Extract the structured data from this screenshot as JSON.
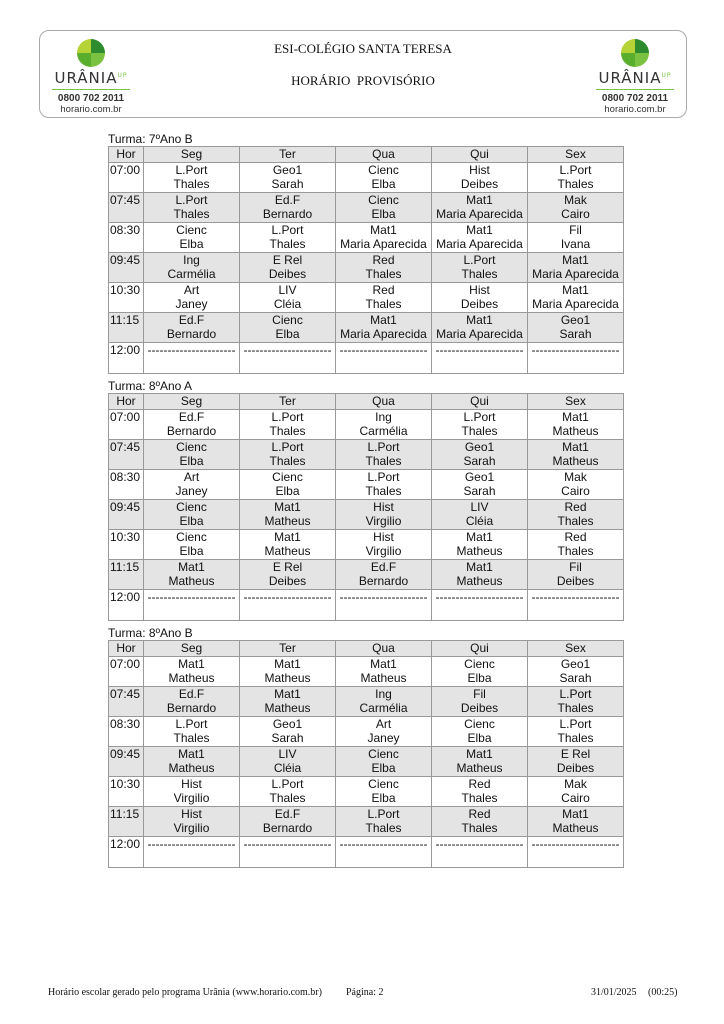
{
  "header": {
    "school": "ESI-COLÉGIO SANTA TERESA",
    "subtitle": "HORÁRIO  PROVISÓRIO",
    "logo": {
      "brand": "URÂNIA",
      "sup": "UP",
      "phone": "0800 702 2011",
      "site": "horario.com.br"
    }
  },
  "columns": [
    "Hor",
    "Seg",
    "Ter",
    "Qua",
    "Qui",
    "Sex"
  ],
  "classes": [
    {
      "title": "Turma: 7ºAno B",
      "rows": [
        {
          "time": "07:00",
          "cells": [
            [
              "L.Port",
              "Thales"
            ],
            [
              "Geo1",
              "Sarah"
            ],
            [
              "Cienc",
              "Elba"
            ],
            [
              "Hist",
              "Deibes"
            ],
            [
              "L.Port",
              "Thales"
            ]
          ]
        },
        {
          "time": "07:45",
          "cells": [
            [
              "L.Port",
              "Thales"
            ],
            [
              "Ed.F",
              "Bernardo"
            ],
            [
              "Cienc",
              "Elba"
            ],
            [
              "Mat1",
              "Maria Aparecida"
            ],
            [
              "Mak",
              "Cairo"
            ]
          ]
        },
        {
          "time": "08:30",
          "cells": [
            [
              "Cienc",
              "Elba"
            ],
            [
              "L.Port",
              "Thales"
            ],
            [
              "Mat1",
              "Maria Aparecida"
            ],
            [
              "Mat1",
              "Maria Aparecida"
            ],
            [
              "Fil",
              "Ivana"
            ]
          ]
        },
        {
          "time": "09:45",
          "cells": [
            [
              "Ing",
              "Carmélia"
            ],
            [
              "E Rel",
              "Deibes"
            ],
            [
              "Red",
              "Thales"
            ],
            [
              "L.Port",
              "Thales"
            ],
            [
              "Mat1",
              "Maria Aparecida"
            ]
          ]
        },
        {
          "time": "10:30",
          "cells": [
            [
              "Art",
              "Janey"
            ],
            [
              "LIV",
              "Cléia"
            ],
            [
              "Red",
              "Thales"
            ],
            [
              "Hist",
              "Deibes"
            ],
            [
              "Mat1",
              "Maria Aparecida"
            ]
          ]
        },
        {
          "time": "11:15",
          "cells": [
            [
              "Ed.F",
              "Bernardo"
            ],
            [
              "Cienc",
              "Elba"
            ],
            [
              "Mat1",
              "Maria Aparecida"
            ],
            [
              "Mat1",
              "Maria Aparecida"
            ],
            [
              "Geo1",
              "Sarah"
            ]
          ]
        },
        {
          "time": "12:00",
          "cells": [
            [
              "----------------------",
              ""
            ],
            [
              "----------------------",
              ""
            ],
            [
              "----------------------",
              ""
            ],
            [
              "----------------------",
              ""
            ],
            [
              "----------------------",
              ""
            ]
          ]
        }
      ]
    },
    {
      "title": "Turma: 8ºAno A",
      "rows": [
        {
          "time": "07:00",
          "cells": [
            [
              "Ed.F",
              "Bernardo"
            ],
            [
              "L.Port",
              "Thales"
            ],
            [
              "Ing",
              "Carmélia"
            ],
            [
              "L.Port",
              "Thales"
            ],
            [
              "Mat1",
              "Matheus"
            ]
          ]
        },
        {
          "time": "07:45",
          "cells": [
            [
              "Cienc",
              "Elba"
            ],
            [
              "L.Port",
              "Thales"
            ],
            [
              "L.Port",
              "Thales"
            ],
            [
              "Geo1",
              "Sarah"
            ],
            [
              "Mat1",
              "Matheus"
            ]
          ]
        },
        {
          "time": "08:30",
          "cells": [
            [
              "Art",
              "Janey"
            ],
            [
              "Cienc",
              "Elba"
            ],
            [
              "L.Port",
              "Thales"
            ],
            [
              "Geo1",
              "Sarah"
            ],
            [
              "Mak",
              "Cairo"
            ]
          ]
        },
        {
          "time": "09:45",
          "cells": [
            [
              "Cienc",
              "Elba"
            ],
            [
              "Mat1",
              "Matheus"
            ],
            [
              "Hist",
              "Virgilio"
            ],
            [
              "LIV",
              "Cléia"
            ],
            [
              "Red",
              "Thales"
            ]
          ]
        },
        {
          "time": "10:30",
          "cells": [
            [
              "Cienc",
              "Elba"
            ],
            [
              "Mat1",
              "Matheus"
            ],
            [
              "Hist",
              "Virgilio"
            ],
            [
              "Mat1",
              "Matheus"
            ],
            [
              "Red",
              "Thales"
            ]
          ]
        },
        {
          "time": "11:15",
          "cells": [
            [
              "Mat1",
              "Matheus"
            ],
            [
              "E Rel",
              "Deibes"
            ],
            [
              "Ed.F",
              "Bernardo"
            ],
            [
              "Mat1",
              "Matheus"
            ],
            [
              "Fil",
              "Deibes"
            ]
          ]
        },
        {
          "time": "12:00",
          "cells": [
            [
              "----------------------",
              ""
            ],
            [
              "----------------------",
              ""
            ],
            [
              "----------------------",
              ""
            ],
            [
              "----------------------",
              ""
            ],
            [
              "----------------------",
              ""
            ]
          ]
        }
      ]
    },
    {
      "title": "Turma: 8ºAno B",
      "rows": [
        {
          "time": "07:00",
          "cells": [
            [
              "Mat1",
              "Matheus"
            ],
            [
              "Mat1",
              "Matheus"
            ],
            [
              "Mat1",
              "Matheus"
            ],
            [
              "Cienc",
              "Elba"
            ],
            [
              "Geo1",
              "Sarah"
            ]
          ]
        },
        {
          "time": "07:45",
          "cells": [
            [
              "Ed.F",
              "Bernardo"
            ],
            [
              "Mat1",
              "Matheus"
            ],
            [
              "Ing",
              "Carmélia"
            ],
            [
              "Fil",
              "Deibes"
            ],
            [
              "L.Port",
              "Thales"
            ]
          ]
        },
        {
          "time": "08:30",
          "cells": [
            [
              "L.Port",
              "Thales"
            ],
            [
              "Geo1",
              "Sarah"
            ],
            [
              "Art",
              "Janey"
            ],
            [
              "Cienc",
              "Elba"
            ],
            [
              "L.Port",
              "Thales"
            ]
          ]
        },
        {
          "time": "09:45",
          "cells": [
            [
              "Mat1",
              "Matheus"
            ],
            [
              "LIV",
              "Cléia"
            ],
            [
              "Cienc",
              "Elba"
            ],
            [
              "Mat1",
              "Matheus"
            ],
            [
              "E Rel",
              "Deibes"
            ]
          ]
        },
        {
          "time": "10:30",
          "cells": [
            [
              "Hist",
              "Virgilio"
            ],
            [
              "L.Port",
              "Thales"
            ],
            [
              "Cienc",
              "Elba"
            ],
            [
              "Red",
              "Thales"
            ],
            [
              "Mak",
              "Cairo"
            ]
          ]
        },
        {
          "time": "11:15",
          "cells": [
            [
              "Hist",
              "Virgilio"
            ],
            [
              "Ed.F",
              "Bernardo"
            ],
            [
              "L.Port",
              "Thales"
            ],
            [
              "Red",
              "Thales"
            ],
            [
              "Mat1",
              "Matheus"
            ]
          ]
        },
        {
          "time": "12:00",
          "cells": [
            [
              "----------------------",
              ""
            ],
            [
              "----------------------",
              ""
            ],
            [
              "----------------------",
              ""
            ],
            [
              "----------------------",
              ""
            ],
            [
              "----------------------",
              ""
            ]
          ]
        }
      ]
    }
  ],
  "footer": {
    "generated": "Horário escolar gerado pelo programa Urânia (www.horario.com.br)",
    "page": "Página: 2",
    "date": "31/01/2025",
    "time": "(00:25)"
  }
}
